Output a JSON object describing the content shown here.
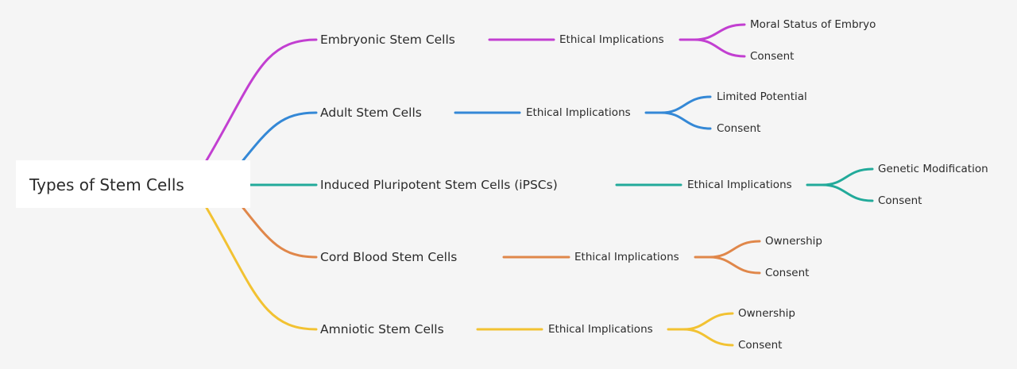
{
  "root": {
    "label": "Types of Stem Cells"
  },
  "branches": [
    {
      "label": "Embryonic Stem Cells",
      "color": "#c23fd1",
      "child": {
        "label": "Ethical Implications",
        "leaves": [
          "Moral Status of Embryo",
          "Consent"
        ]
      }
    },
    {
      "label": "Adult Stem Cells",
      "color": "#3488d6",
      "child": {
        "label": "Ethical Implications",
        "leaves": [
          "Limited Potential",
          "Consent"
        ]
      }
    },
    {
      "label": "Induced Pluripotent Stem Cells (iPSCs)",
      "color": "#22aa9a",
      "child": {
        "label": "Ethical Implications",
        "leaves": [
          "Genetic Modification",
          "Consent"
        ]
      }
    },
    {
      "label": "Cord Blood Stem Cells",
      "color": "#e0874a",
      "child": {
        "label": "Ethical Implications",
        "leaves": [
          "Ownership",
          "Consent"
        ]
      }
    },
    {
      "label": "Amniotic Stem Cells",
      "color": "#f2c232",
      "child": {
        "label": "Ethical Implications",
        "leaves": [
          "Ownership",
          "Consent"
        ]
      }
    }
  ]
}
